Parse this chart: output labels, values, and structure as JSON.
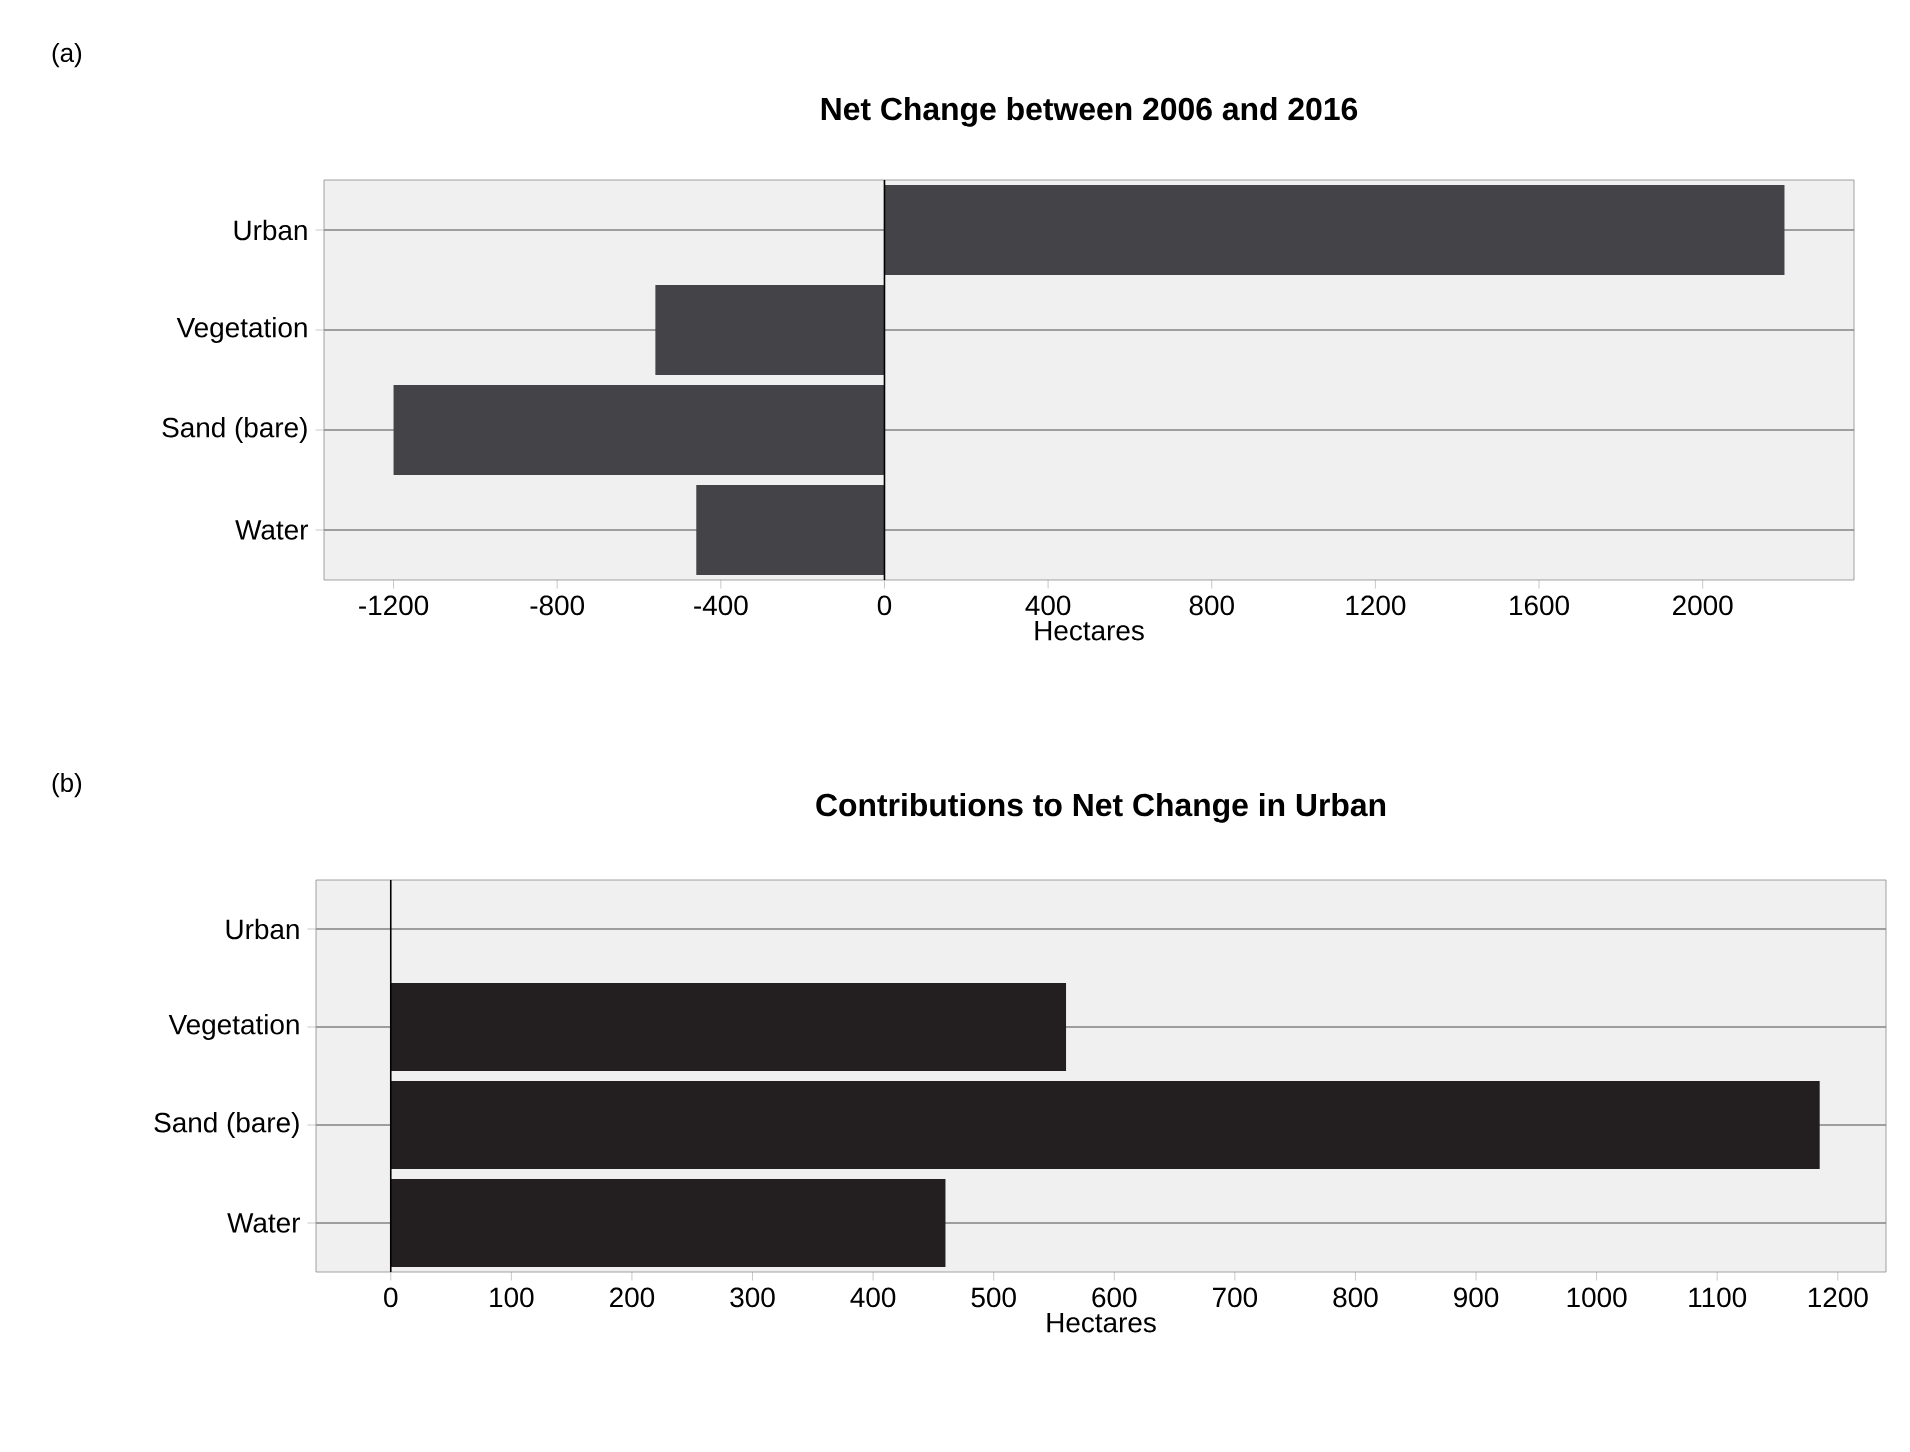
{
  "chart_data": [
    {
      "type": "bar",
      "orientation": "horizontal",
      "title": "Net Change between 2006 and 2016",
      "xlabel": "Hectares",
      "categories": [
        "Urban",
        "Vegetation",
        "Sand (bare)",
        "Water"
      ],
      "values": [
        2200,
        -560,
        -1200,
        -460
      ],
      "color": "#444448",
      "xlim": [
        -1370,
        2370
      ],
      "xticks": [
        -1200,
        -800,
        -400,
        0,
        400,
        800,
        1200,
        1600,
        2000
      ],
      "grid": "y",
      "ref_lines": [
        {
          "axis": "x",
          "value": 0
        }
      ],
      "annotations": [
        "(a)"
      ]
    },
    {
      "type": "bar",
      "orientation": "horizontal",
      "title": "Contributions to Net Change in Urban",
      "xlabel": "Hectares",
      "categories": [
        "Urban",
        "Vegetation",
        "Sand (bare)",
        "Water"
      ],
      "values": [
        0,
        560,
        1185,
        460
      ],
      "color": "#231f20",
      "xlim": [
        -62,
        1240
      ],
      "xticks": [
        0,
        100,
        200,
        300,
        400,
        500,
        600,
        700,
        800,
        900,
        1000,
        1100,
        1200
      ],
      "grid": "y",
      "ref_lines": [
        {
          "axis": "x",
          "value": 0
        }
      ],
      "annotations": [
        "(b)"
      ]
    }
  ]
}
